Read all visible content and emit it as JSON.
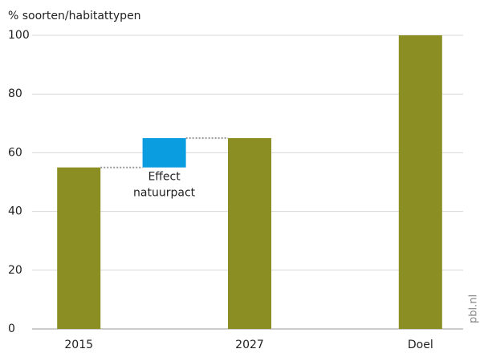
{
  "chart_data": {
    "type": "waterfall",
    "y_label": "% soorten/habitattypen",
    "categories": [
      "2015",
      null,
      "2027",
      null,
      "Doel"
    ],
    "values": [
      55,
      10,
      65,
      null,
      100
    ],
    "measure": [
      "absolute",
      "relative",
      "absolute",
      null,
      "absolute"
    ],
    "colors": [
      "#8b8e23",
      "#0a9ddf",
      "#8b8e23",
      null,
      "#8b8e23"
    ],
    "annotation": {
      "lines": [
        "Effect",
        "natuurpact"
      ]
    },
    "ylim": [
      0,
      100
    ],
    "yticks": [
      0,
      20,
      40,
      60,
      80,
      100
    ],
    "grid": true,
    "source": "pbl.nl"
  }
}
